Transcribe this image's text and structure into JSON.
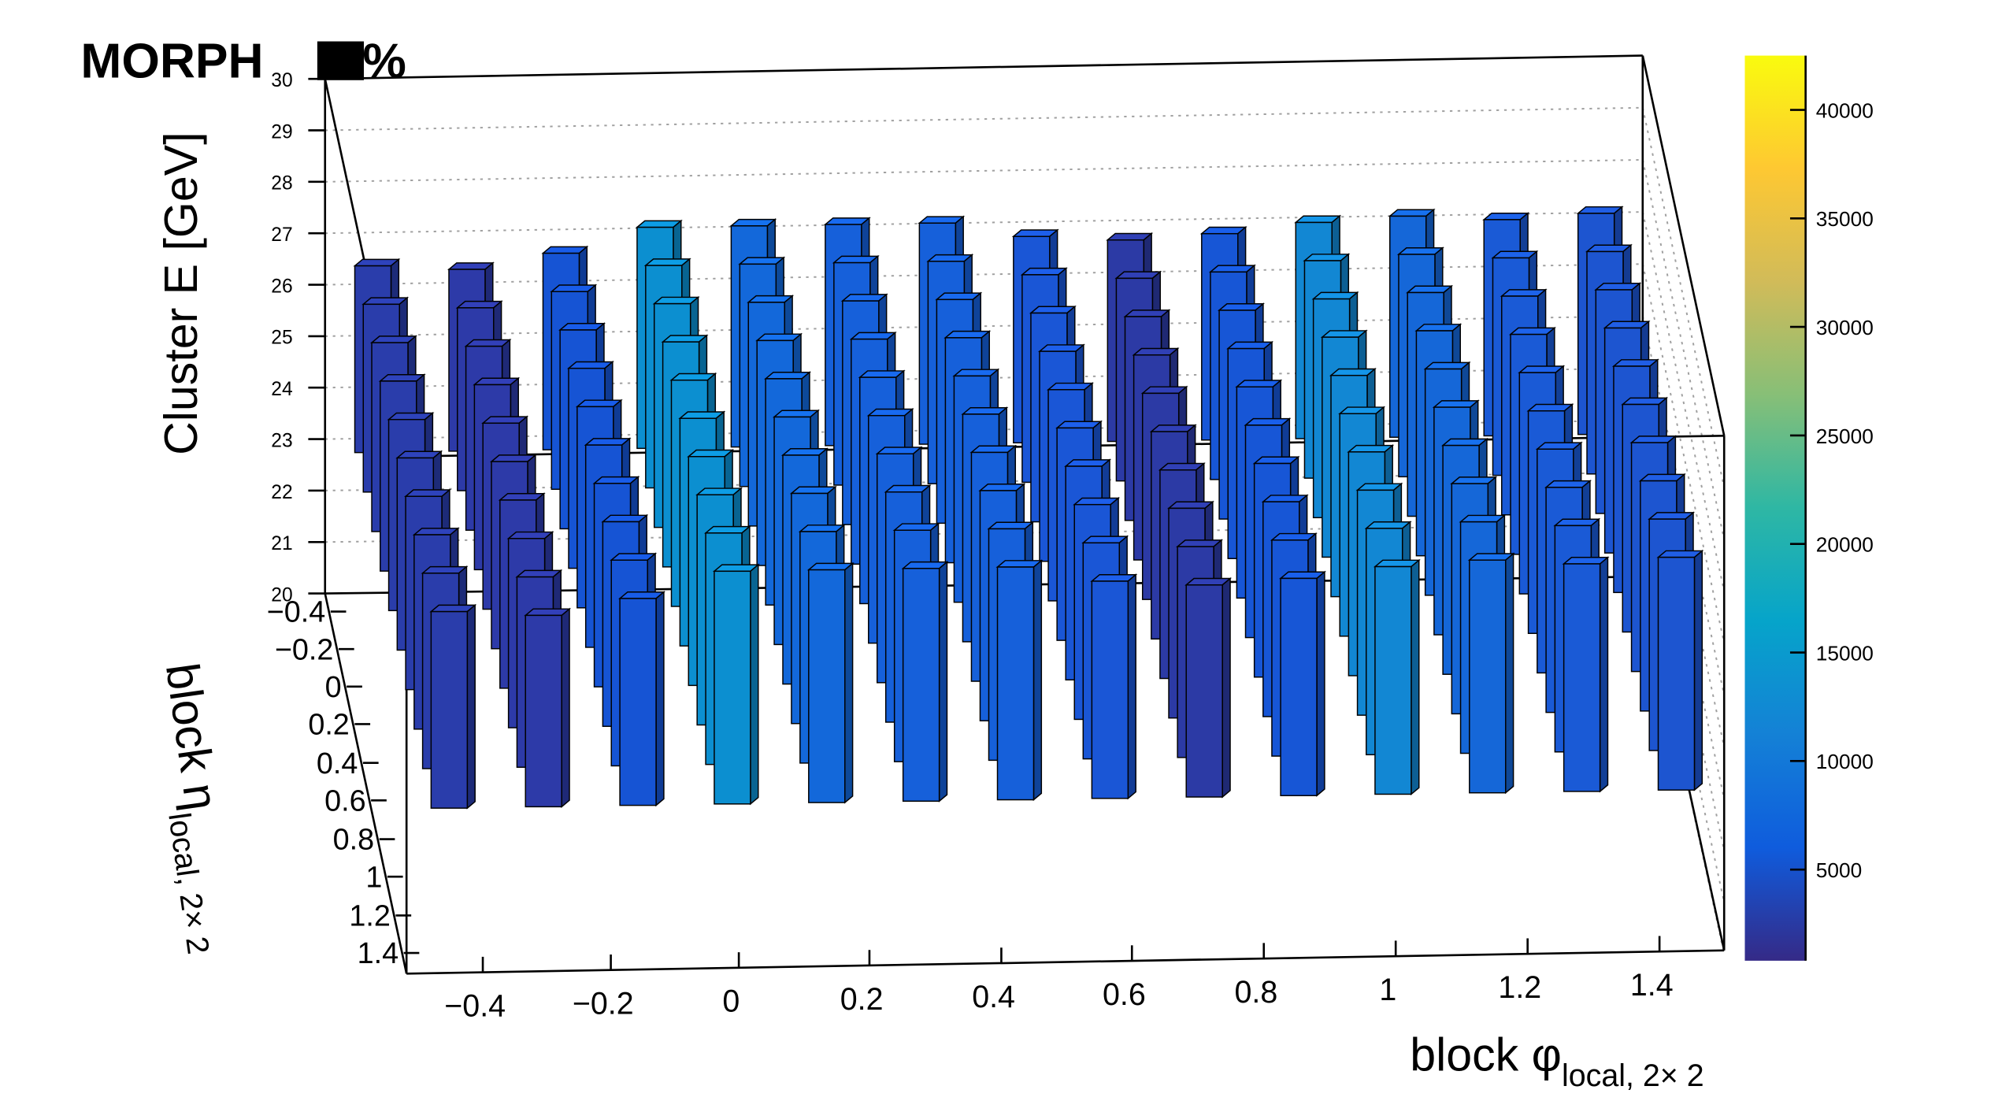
{
  "figure": {
    "title": "MORPH",
    "title_suffix": "%"
  },
  "chart_data": {
    "type": "lego3d",
    "xlabel": "block φ",
    "xlabel_sub": "local, 2× 2",
    "ylabel": "block η",
    "ylabel_sub": "local, 2× 2",
    "zlabel": "Cluster E  [GeV]",
    "x_ticks": [
      "−0.4",
      "−0.2",
      "0",
      "0.2",
      "0.4",
      "0.6",
      "0.8",
      "1",
      "1.2",
      "1.4"
    ],
    "y_ticks": [
      "−0.4",
      "−0.2",
      "0",
      "0.2",
      "0.4",
      "0.6",
      "0.8",
      "1",
      "1.2",
      "1.4"
    ],
    "z_ticks": [
      "20",
      "21",
      "22",
      "23",
      "24",
      "25",
      "26",
      "27",
      "28",
      "29",
      "30"
    ],
    "zlim": [
      20,
      30
    ],
    "colorbar": {
      "range": [
        800,
        42500
      ],
      "ticks": [
        "5000",
        "10000",
        "15000",
        "20000",
        "25000",
        "30000",
        "35000",
        "40000"
      ],
      "tick_values": [
        5000,
        10000,
        15000,
        20000,
        25000,
        30000,
        35000,
        40000
      ],
      "palette": [
        "#352a87",
        "#0f5cdd",
        "#1481d6",
        "#06a4ca",
        "#2eb7a4",
        "#87bf77",
        "#d1bb59",
        "#fec832",
        "#f9fb0e"
      ]
    },
    "columns": [
      {
        "phi_bin": 0,
        "fill": "#2a3dab",
        "top_z": 26.8,
        "bottom_z": 23.0,
        "dz": 3.8
      },
      {
        "phi_bin": 1,
        "fill": "#2d3aa8",
        "top_z": 26.5,
        "bottom_z": 22.8,
        "dz": 3.7
      },
      {
        "phi_bin": 2,
        "fill": "#1654d4",
        "top_z": 26.9,
        "bottom_z": 22.9,
        "dz": 4.0
      },
      {
        "phi_bin": 3,
        "fill": "#0c8fd0",
        "top_z": 27.4,
        "bottom_z": 22.9,
        "dz": 4.5
      },
      {
        "phi_bin": 4,
        "fill": "#1368da",
        "top_z": 27.3,
        "bottom_z": 22.8,
        "dz": 4.5
      },
      {
        "phi_bin": 5,
        "fill": "#1660da",
        "top_z": 27.3,
        "bottom_z": 22.8,
        "dz": 4.5
      },
      {
        "phi_bin": 6,
        "fill": "#1660da",
        "top_z": 27.3,
        "bottom_z": 22.8,
        "dz": 4.5
      },
      {
        "phi_bin": 7,
        "fill": "#1a56d6",
        "top_z": 27.1,
        "bottom_z": 22.9,
        "dz": 4.2
      },
      {
        "phi_bin": 8,
        "fill": "#2c3aa5",
        "top_z": 26.8,
        "bottom_z": 22.7,
        "dz": 4.1
      },
      {
        "phi_bin": 9,
        "fill": "#1756d6",
        "top_z": 26.9,
        "bottom_z": 22.7,
        "dz": 4.2
      },
      {
        "phi_bin": 10,
        "fill": "#1287d3",
        "top_z": 27.2,
        "bottom_z": 22.8,
        "dz": 4.4
      },
      {
        "phi_bin": 11,
        "fill": "#1567d8",
        "top_z": 27.3,
        "bottom_z": 22.8,
        "dz": 4.5
      },
      {
        "phi_bin": 12,
        "fill": "#1a5ad6",
        "top_z": 27.2,
        "bottom_z": 22.8,
        "dz": 4.4
      },
      {
        "phi_bin": 13,
        "fill": "#1d55d0",
        "top_z": 27.3,
        "bottom_z": 22.8,
        "dz": 4.5
      }
    ]
  }
}
